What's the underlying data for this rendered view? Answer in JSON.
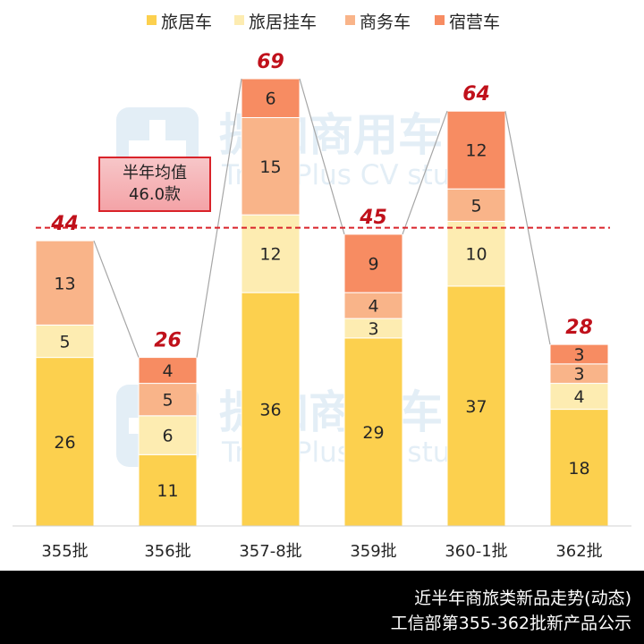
{
  "chart_data": {
    "type": "bar",
    "stacked": true,
    "categories": [
      "355批",
      "356批",
      "357-8批",
      "359批",
      "360-1批",
      "362批"
    ],
    "series": [
      {
        "name": "旅居车",
        "color": "#fcd04e",
        "values": [
          26,
          11,
          36,
          29,
          37,
          18
        ]
      },
      {
        "name": "旅居挂车",
        "color": "#fdecb1",
        "values": [
          5,
          6,
          12,
          3,
          10,
          4
        ]
      },
      {
        "name": "商务车",
        "color": "#f9b489",
        "values": [
          13,
          5,
          15,
          4,
          5,
          3
        ]
      },
      {
        "name": "宿营车",
        "color": "#f78c62",
        "values": [
          0,
          4,
          6,
          9,
          12,
          3
        ]
      }
    ],
    "totals": [
      44,
      26,
      69,
      45,
      64,
      28
    ],
    "average": {
      "value": 46.0,
      "label_line1": "半年均值",
      "label_line2": "46.0款"
    },
    "ylim": [
      0,
      71
    ],
    "legend_position": "top",
    "grid": false
  },
  "watermark": {
    "cn": "提加商用车",
    "en": "TruckPlus CV studio"
  },
  "footer": {
    "line1": "近半年商旅类新品走势(动态)",
    "line2": "工信部第355-362批新产品公示"
  },
  "colors": {
    "total_label": "#c0111b",
    "avg_line": "#d9232a",
    "connector": "#a6a6a6",
    "axis": "#d0d0d0"
  }
}
